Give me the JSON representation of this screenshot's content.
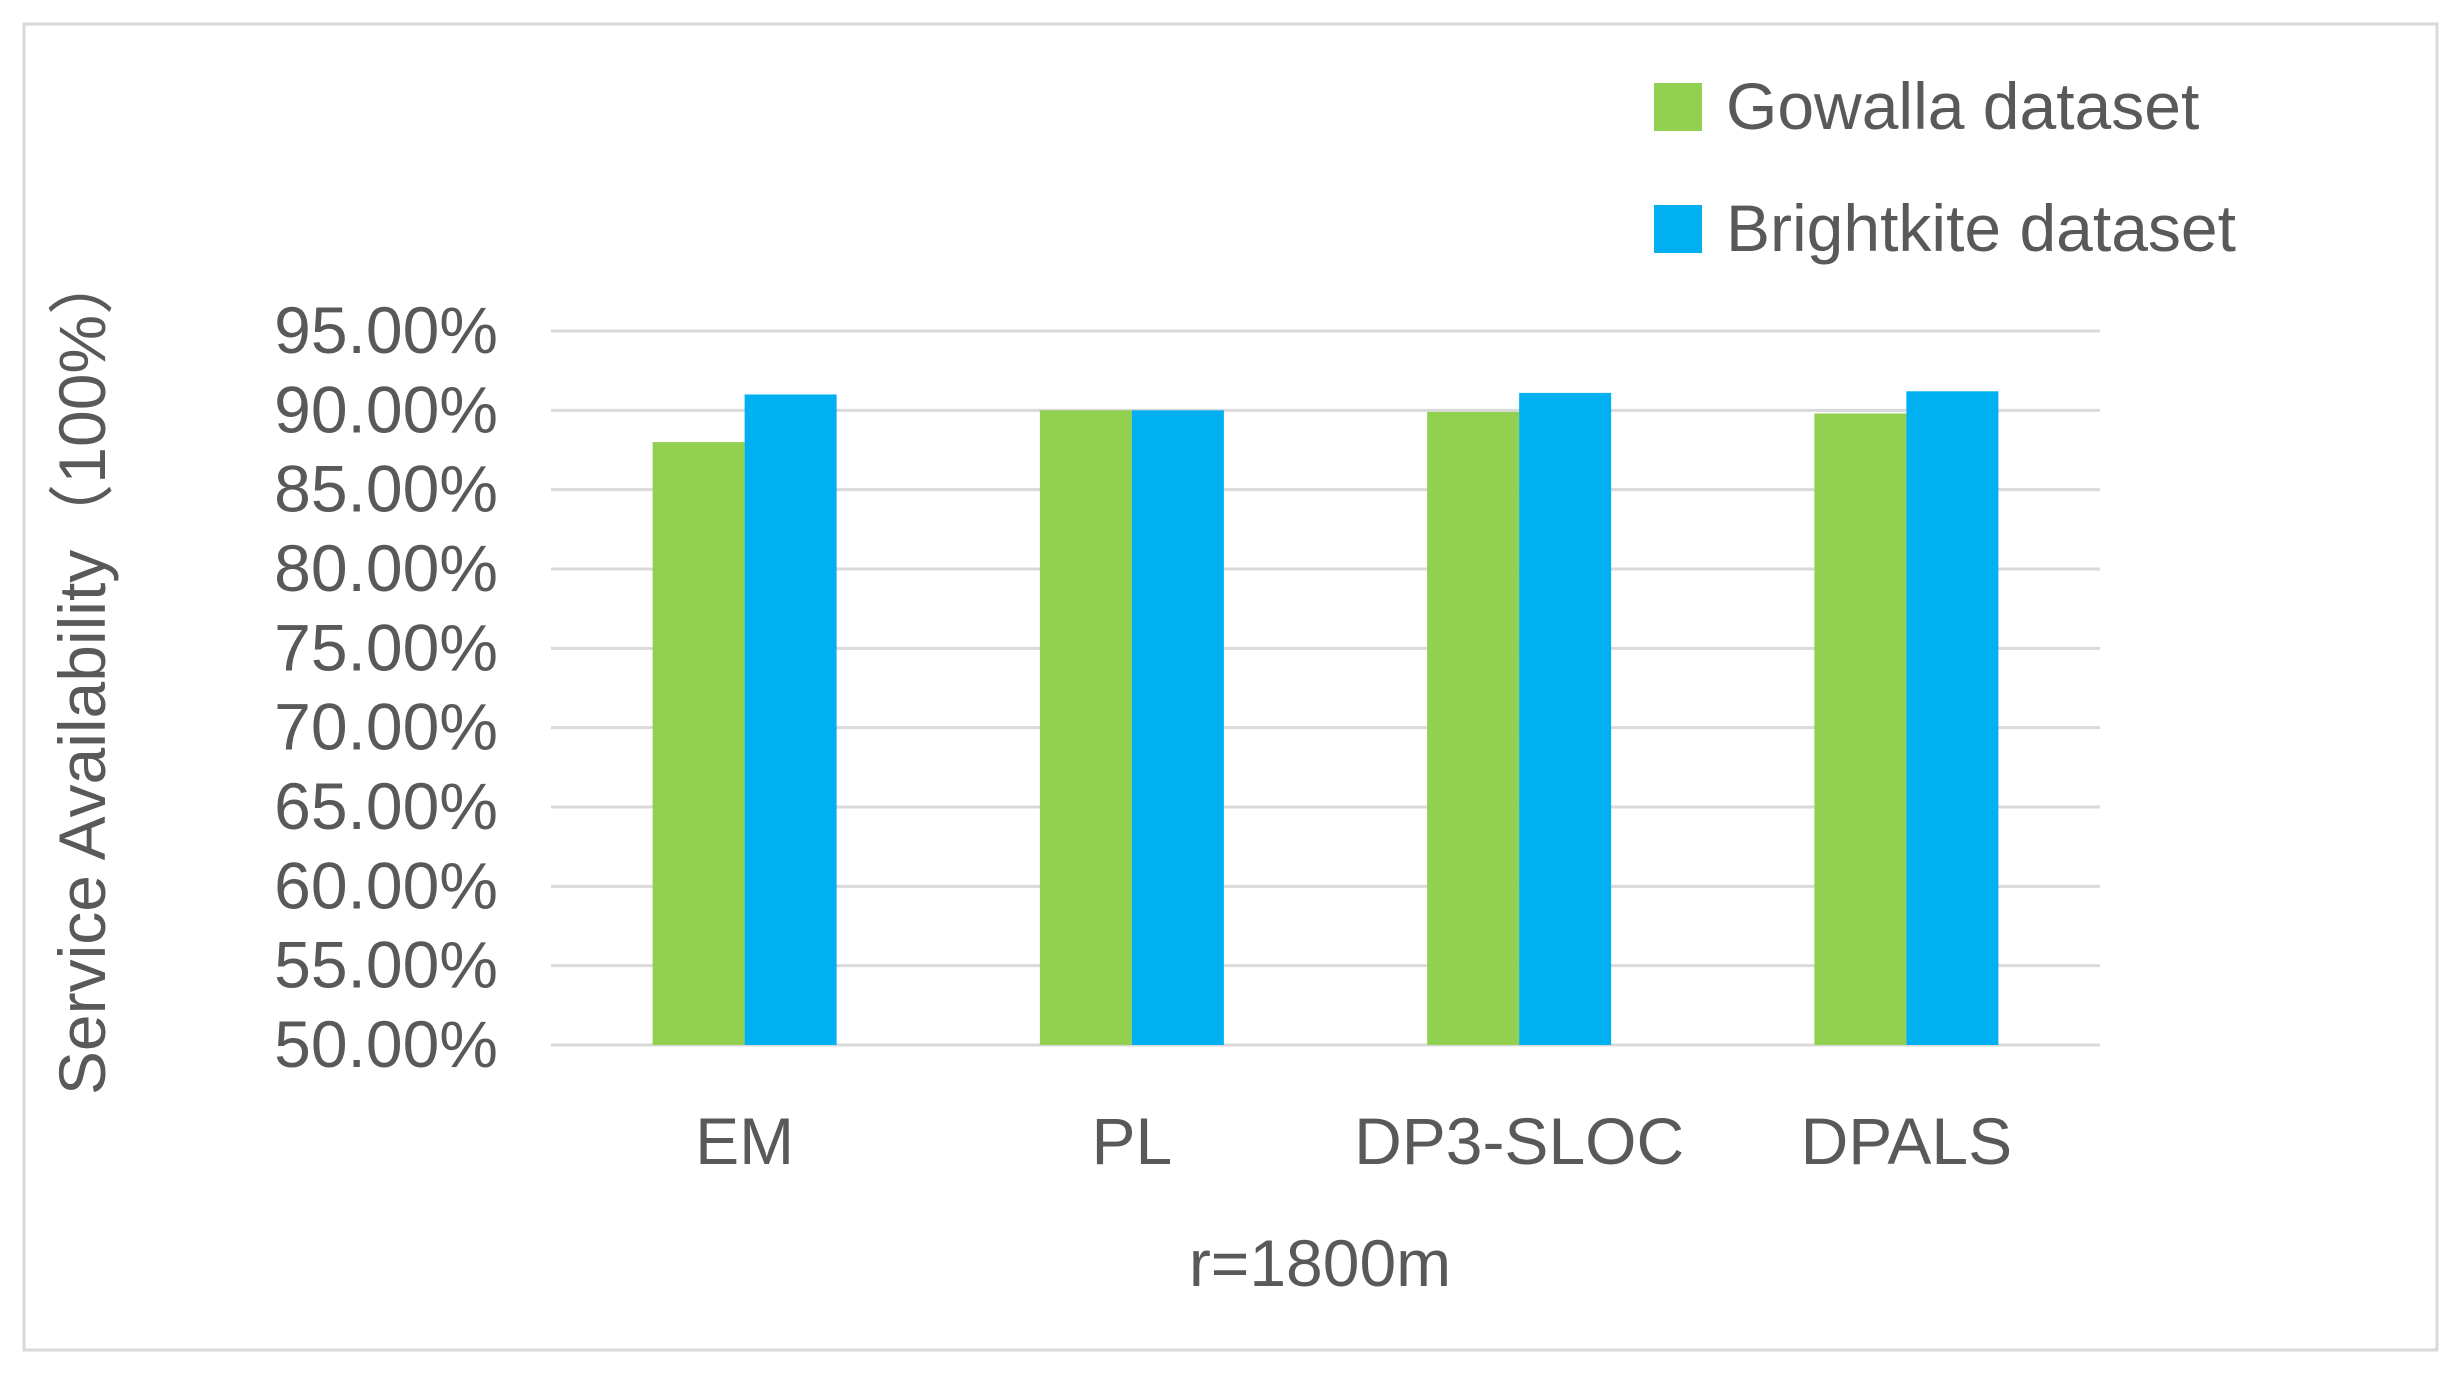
{
  "chart_data": {
    "type": "bar",
    "categories": [
      "EM",
      "PL",
      "DP3-SLOC",
      "DPALS"
    ],
    "series": [
      {
        "name": "Gowalla dataset",
        "values": [
          88.0,
          90.0,
          89.9,
          89.8
        ],
        "color": "#92d050"
      },
      {
        "name": "Brightkite dataset",
        "values": [
          91.0,
          90.0,
          91.1,
          91.2
        ],
        "color": "#00b0f0"
      }
    ],
    "ylabel": "Service Availability（100%）",
    "xlabel": "r=1800m",
    "ylim": [
      50,
      95
    ],
    "yticks": [
      50,
      55,
      60,
      65,
      70,
      75,
      80,
      85,
      90,
      95
    ],
    "ytick_labels": [
      "50.00%",
      "55.00%",
      "60.00%",
      "65.00%",
      "70.00%",
      "75.00%",
      "80.00%",
      "85.00%",
      "90.00%",
      "95.00%"
    ],
    "grid": true,
    "legend_position": "top-right"
  }
}
